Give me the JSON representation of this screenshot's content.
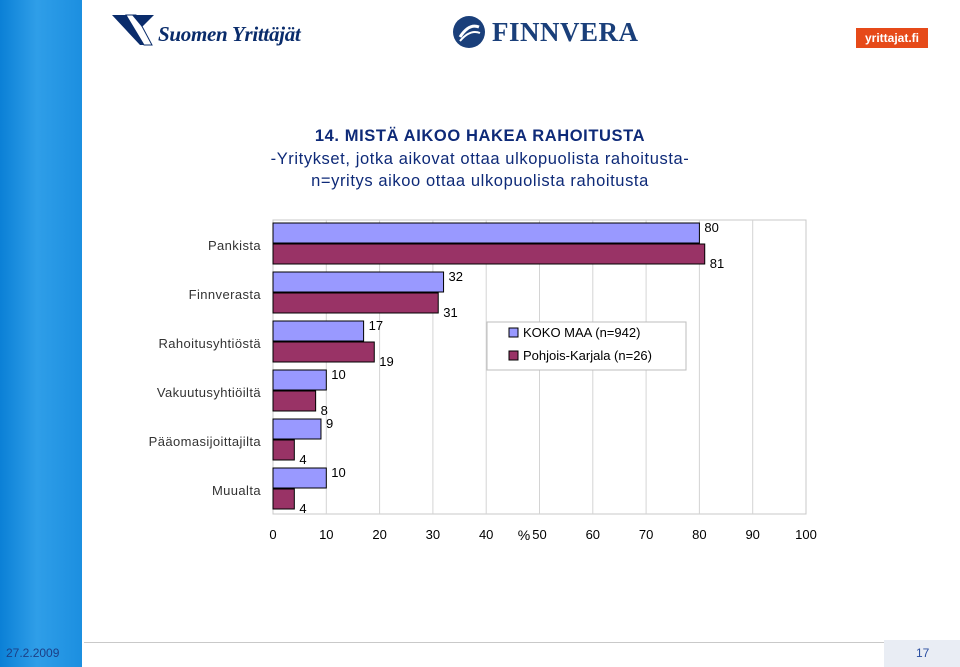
{
  "header": {
    "logo_left": "Suomen Yrittäjät",
    "logo_center": "FINNVERA",
    "logo_right": "yrittajat.fi"
  },
  "slide": {
    "title_line1": "14. MISTÄ AIKOO HAKEA RAHOITUSTA",
    "title_line2": "-Yritykset, jotka aikovat ottaa ulkopuolista rahoitusta-",
    "title_line3": "n=yritys aikoo ottaa ulkopuolista rahoitusta"
  },
  "chart_data": {
    "type": "bar",
    "orientation": "horizontal",
    "categories": [
      "Pankista",
      "Finnverasta",
      "Rahoitusyhtiöstä",
      "Vakuutusyhtiöiltä",
      "Pääomasijoittajilta",
      "Muualta"
    ],
    "series": [
      {
        "name": "KOKO MAA (n=942)",
        "values": [
          80,
          32,
          17,
          10,
          9,
          10
        ],
        "color": "#9999ff"
      },
      {
        "name": "Pohjois-Karjala (n=26)",
        "values": [
          81,
          31,
          19,
          8,
          4,
          4
        ],
        "color": "#993366"
      }
    ],
    "xlabel": "%",
    "xlim": [
      0,
      100
    ],
    "xticks": [
      "0",
      "10",
      "20",
      "30",
      "40",
      "50",
      "60",
      "70",
      "80",
      "90",
      "100"
    ],
    "grid": true,
    "legend_position": "right-middle"
  },
  "footer": {
    "date": "27.2.2009",
    "page": "17"
  }
}
